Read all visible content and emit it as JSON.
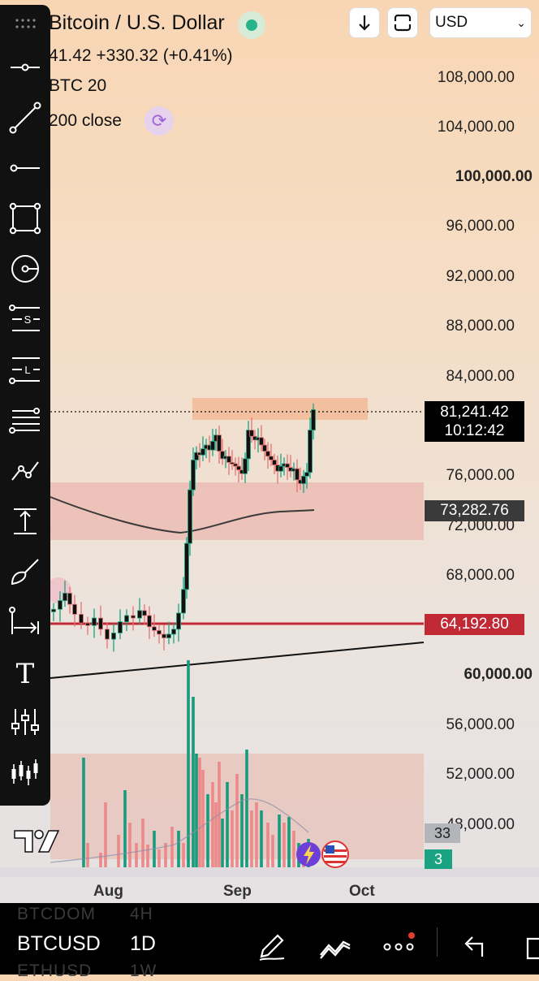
{
  "header": {
    "title": "Bitcoin / U.S. Dollar",
    "price_line": "41.42 +330.32 (+0.41%)",
    "indicator_1": "BTC 20",
    "indicator_2": "200 close",
    "currency": "USD"
  },
  "price_axis": {
    "labels": [
      "108,000.00",
      "104,000.00",
      "100,000.00",
      "96,000.00",
      "92,000.00",
      "88,000.00",
      "84,000.00",
      "76,000.00",
      "72,000.00",
      "68,000.00",
      "60,000.00",
      "56,000.00",
      "52,000.00",
      "48,000.00"
    ],
    "bold_labels": [
      "100,000.00",
      "60,000.00"
    ]
  },
  "price_tags": {
    "current_price": "81,241.42",
    "countdown": "10:12:42",
    "ma_value": "73,282.76",
    "level_value": "64,192.80",
    "volume_tag_1": "33",
    "volume_tag_2": "3"
  },
  "time_axis": {
    "labels": [
      "Aug",
      "Sep",
      "Oct"
    ]
  },
  "bottom_bar": {
    "symbol": "BTCUSD",
    "interval": "1D",
    "ghost_above_symbol": "BTCDOM",
    "ghost_above_interval": "4H",
    "ghost_below_symbol": "ETHUSD",
    "ghost_below_interval": "1W"
  },
  "toolbar": {
    "icons": [
      "grip-icon",
      "horizontal-ray-icon",
      "trend-line-icon",
      "horizontal-line-icon",
      "rectangle-icon",
      "circle-icon",
      "short-position-icon",
      "long-position-icon",
      "parallel-lines-icon",
      "polyline-icon",
      "price-range-icon",
      "brush-icon",
      "date-range-icon",
      "text-icon",
      "indicators-icon",
      "candles-icon"
    ],
    "s_marker": "S",
    "l_marker": "L",
    "text_marker": "T"
  },
  "colors": {
    "up": "#19a382",
    "down": "#e57373",
    "candle_body": "#111111",
    "level_line": "#c12a35",
    "zone": "#e9a9a3",
    "resistance_zone": "#f2b68f",
    "volume_up": "#1a9a7c",
    "volume_down": "#ea8a8a"
  }
}
